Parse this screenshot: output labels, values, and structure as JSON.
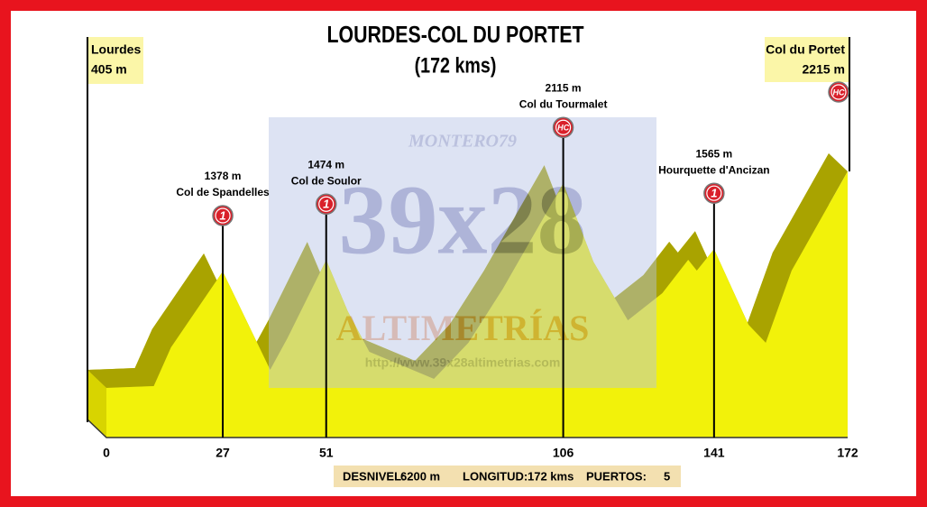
{
  "chart_data": {
    "type": "area",
    "title": "LOURDES-COL DU PORTET",
    "subtitle": "(172 kms)",
    "start": {
      "name": "Lourdes",
      "label": "405 m"
    },
    "end": {
      "name": "Col du Portet",
      "label": "2215 m",
      "category": "HC"
    },
    "x": [
      0,
      11,
      15,
      20,
      27,
      38,
      42,
      51,
      56,
      61,
      76,
      84,
      92,
      106,
      113,
      121,
      129,
      135,
      137,
      141,
      149,
      153,
      159,
      172
    ],
    "values": [
      405,
      420,
      744,
      1008,
      1378,
      556,
      820,
      1474,
      1046,
      707,
      480,
      782,
      1234,
      2115,
      1460,
      970,
      1197,
      1476,
      1385,
      1565,
      933,
      782,
      1385,
      2215
    ],
    "color": "#f2f20a",
    "xticks": [
      0,
      27,
      51,
      106,
      141,
      172
    ],
    "climbs": [
      {
        "km": 27,
        "elevation_label": "1378 m",
        "name": "Col de Spandelles",
        "category": "1"
      },
      {
        "km": 51,
        "elevation_label": "1474 m",
        "name": "Col de Soulor",
        "category": "1"
      },
      {
        "km": 106,
        "elevation_label": "2115 m",
        "name": "Col du Tourmalet",
        "category": "HC"
      },
      {
        "km": 141,
        "elevation_label": "1565 m",
        "name": "Hourquette d'Ancizan",
        "category": "1"
      }
    ],
    "stats": [
      {
        "label": "DESNIVEL:",
        "value": "6200 m"
      },
      {
        "label": "LONGITUD:",
        "value": "172 kms"
      },
      {
        "label": "PUERTOS:",
        "value": "5"
      }
    ],
    "watermark": {
      "author": "MONTERO79",
      "brand": "39x28",
      "name": "ALTIMETRÍAS",
      "url": "http://www.39x28altimetrias.com"
    }
  }
}
